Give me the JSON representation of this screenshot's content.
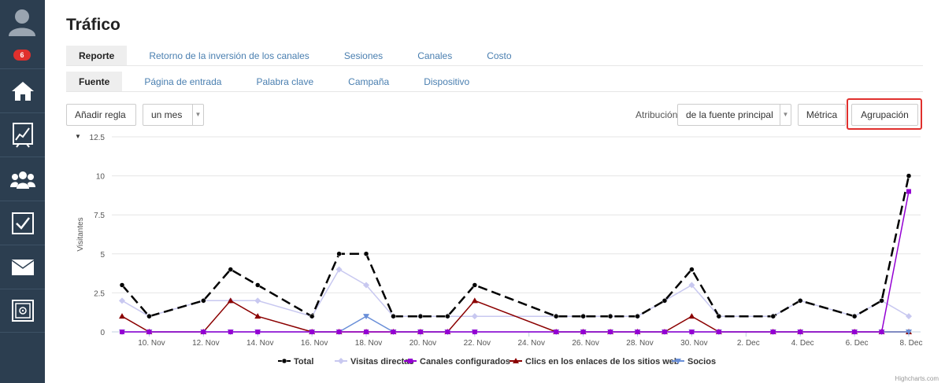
{
  "sidebar": {
    "badge": "6",
    "icons": [
      "user-avatar-icon",
      "home-icon",
      "chart-icon",
      "users-icon",
      "checkbox-icon",
      "mail-icon",
      "safe-icon"
    ]
  },
  "page": {
    "title": "Tráfico"
  },
  "tabs1": [
    {
      "label": "Reporte",
      "active": true
    },
    {
      "label": "Retorno de la inversión de los canales",
      "active": false
    },
    {
      "label": "Sesiones",
      "active": false
    },
    {
      "label": "Canales",
      "active": false
    },
    {
      "label": "Costo",
      "active": false
    }
  ],
  "tabs2": [
    {
      "label": "Fuente",
      "active": true
    },
    {
      "label": "Página de entrada",
      "active": false
    },
    {
      "label": "Palabra clave",
      "active": false
    },
    {
      "label": "Campaña",
      "active": false
    },
    {
      "label": "Dispositivo",
      "active": false
    }
  ],
  "toolbar": {
    "add_rule": "Añadir regla",
    "period": "un mes",
    "attribution_label": "Atribución",
    "attribution_value": "de la fuente principal",
    "metric": "Métrica",
    "grouping": "Agrupación"
  },
  "credits": "Highcharts.com",
  "chart_data": {
    "type": "line",
    "ylabel": "Visitantes",
    "ylim": [
      0,
      12.5
    ],
    "yticks": [
      "0",
      "2.5",
      "5",
      "7.5",
      "10",
      "12.5"
    ],
    "x": [
      "9. Nov",
      "10. Nov",
      "11. Nov",
      "12. Nov",
      "13. Nov",
      "14. Nov",
      "15. Nov",
      "16. Nov",
      "17. Nov",
      "18. Nov",
      "19. Nov",
      "20. Nov",
      "21. Nov",
      "22. Nov",
      "23. Nov",
      "24. Nov",
      "25. Nov",
      "26. Nov",
      "27. Nov",
      "28. Nov",
      "29. Nov",
      "30. Nov",
      "1. Dec",
      "2. Dec",
      "3. Dec",
      "4. Dec",
      "5. Dec",
      "6. Dec",
      "7. Dec",
      "8. Dec"
    ],
    "xticks": [
      "10. Nov",
      "12. Nov",
      "14. Nov",
      "16. Nov",
      "18. Nov",
      "20. Nov",
      "22. Nov",
      "24. Nov",
      "26. Nov",
      "28. Nov",
      "30. Nov",
      "2. Dec",
      "4. Dec",
      "6. Dec",
      "8. Dec"
    ],
    "series": [
      {
        "name": "Total",
        "color": "#000000",
        "dash": true,
        "marker": "circle",
        "values": [
          3,
          1,
          null,
          2,
          4,
          3,
          null,
          1,
          5,
          5,
          1,
          1,
          1,
          3,
          null,
          null,
          1,
          1,
          1,
          1,
          2,
          4,
          1,
          null,
          1,
          2,
          null,
          1,
          2,
          10
        ]
      },
      {
        "name": "Visitas directas",
        "color": "#c8c8f0",
        "dash": false,
        "marker": "diamond",
        "values": [
          2,
          1,
          null,
          2,
          2,
          2,
          null,
          1,
          4,
          3,
          1,
          1,
          1,
          1,
          null,
          null,
          1,
          1,
          1,
          1,
          2,
          3,
          1,
          null,
          1,
          2,
          null,
          1,
          2,
          1
        ]
      },
      {
        "name": "Canales configurados",
        "color": "#9400d3",
        "dash": false,
        "marker": "square",
        "values": [
          0,
          0,
          null,
          0,
          0,
          0,
          null,
          0,
          0,
          0,
          0,
          0,
          0,
          0,
          null,
          null,
          0,
          0,
          0,
          0,
          0,
          0,
          0,
          null,
          0,
          0,
          null,
          0,
          0,
          9
        ]
      },
      {
        "name": "Clics en los enlaces de los sitios web",
        "color": "#8b0000",
        "dash": false,
        "marker": "triangle",
        "values": [
          1,
          0,
          null,
          0,
          2,
          1,
          null,
          0,
          0,
          0,
          0,
          0,
          0,
          2,
          null,
          null,
          0,
          0,
          0,
          0,
          0,
          1,
          0,
          null,
          0,
          0,
          null,
          0,
          0,
          0
        ]
      },
      {
        "name": "Socios",
        "color": "#6a8fd8",
        "dash": false,
        "marker": "triangle-down",
        "values": [
          0,
          0,
          null,
          0,
          0,
          0,
          null,
          0,
          0,
          1,
          0,
          0,
          0,
          0,
          null,
          null,
          0,
          0,
          0,
          0,
          0,
          0,
          0,
          null,
          0,
          0,
          null,
          0,
          0,
          0
        ]
      }
    ]
  }
}
